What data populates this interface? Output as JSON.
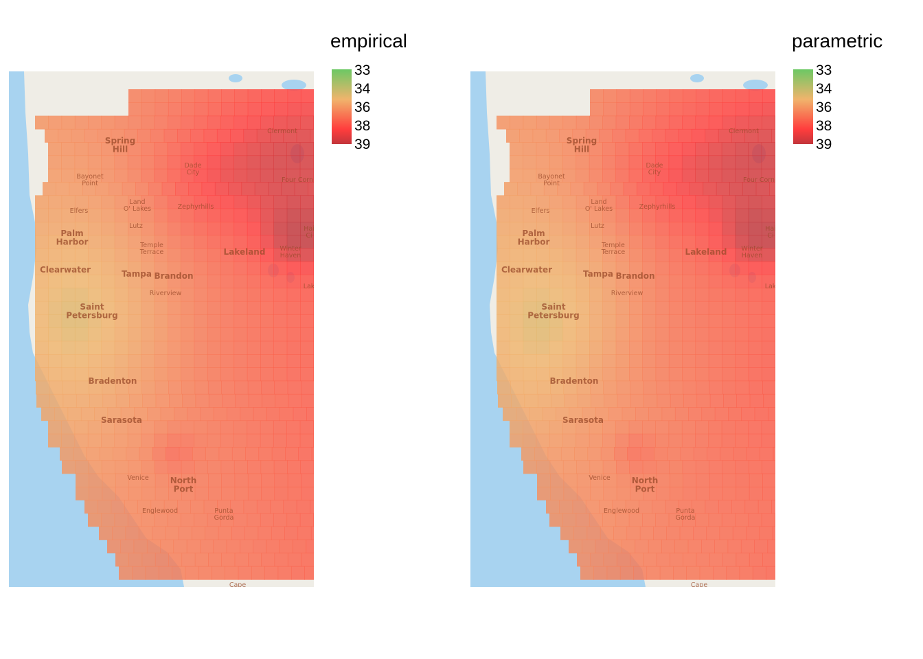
{
  "colors": {
    "water": "#a8d3f0",
    "land": "#efede6",
    "low": "#6cc864",
    "mid": "#f0b46c",
    "high": "#ff3d3d",
    "max": "#c2353b"
  },
  "maps": [
    {
      "id": "empirical",
      "legend_title": "empirical",
      "legend_ticks": [
        "33",
        "34",
        "36",
        "38",
        "39"
      ]
    },
    {
      "id": "parametric",
      "legend_title": "parametric",
      "legend_ticks": [
        "33",
        "34",
        "36",
        "38",
        "39"
      ]
    }
  ],
  "cities": [
    {
      "name": "Spring Hill",
      "lines": [
        "Spring",
        "Hill"
      ],
      "major": true
    },
    {
      "name": "Clermont",
      "lines": [
        "Clermont"
      ],
      "major": false
    },
    {
      "name": "Dade City",
      "lines": [
        "Dade",
        "City"
      ],
      "major": false
    },
    {
      "name": "Bayonet Point",
      "lines": [
        "Bayonet",
        "Point"
      ],
      "major": false
    },
    {
      "name": "Four Corners",
      "lines": [
        "Four Corn"
      ],
      "major": false
    },
    {
      "name": "Land O' Lakes",
      "lines": [
        "Land",
        "O' Lakes"
      ],
      "major": false
    },
    {
      "name": "Zephyrhills",
      "lines": [
        "Zephyrhills"
      ],
      "major": false
    },
    {
      "name": "Elfers",
      "lines": [
        "Elfers"
      ],
      "major": false
    },
    {
      "name": "Lutz",
      "lines": [
        "Lutz"
      ],
      "major": false
    },
    {
      "name": "Palm Harbor",
      "lines": [
        "Palm",
        "Harbor"
      ],
      "major": true
    },
    {
      "name": "Temple Terrace",
      "lines": [
        "Temple",
        "Terrace"
      ],
      "major": false
    },
    {
      "name": "Lakeland",
      "lines": [
        "Lakeland"
      ],
      "major": true
    },
    {
      "name": "Winter Haven",
      "lines": [
        "Winter",
        "Haven"
      ],
      "major": false
    },
    {
      "name": "Haines City",
      "lines": [
        "Hai",
        "Ci"
      ],
      "major": false
    },
    {
      "name": "Clearwater",
      "lines": [
        "Clearwater"
      ],
      "major": true
    },
    {
      "name": "Tampa",
      "lines": [
        "Tampa"
      ],
      "major": true
    },
    {
      "name": "Brandon",
      "lines": [
        "Brandon"
      ],
      "major": true
    },
    {
      "name": "Riverview",
      "lines": [
        "Riverview"
      ],
      "major": false
    },
    {
      "name": "Lake Wales",
      "lines": [
        "Lak"
      ],
      "major": false
    },
    {
      "name": "Saint Petersburg",
      "lines": [
        "Saint",
        "Petersburg"
      ],
      "major": true
    },
    {
      "name": "Bradenton",
      "lines": [
        "Bradenton"
      ],
      "major": true
    },
    {
      "name": "Sarasota",
      "lines": [
        "Sarasota"
      ],
      "major": true
    },
    {
      "name": "Venice",
      "lines": [
        "Venice"
      ],
      "major": false
    },
    {
      "name": "North Port",
      "lines": [
        "North",
        "Port"
      ],
      "major": true
    },
    {
      "name": "Englewood",
      "lines": [
        "Englewood"
      ],
      "major": false
    },
    {
      "name": "Punta Gorda",
      "lines": [
        "Punta",
        "Gorda"
      ],
      "major": false
    },
    {
      "name": "Cape",
      "lines": [
        "Cape"
      ],
      "major": false
    }
  ]
}
